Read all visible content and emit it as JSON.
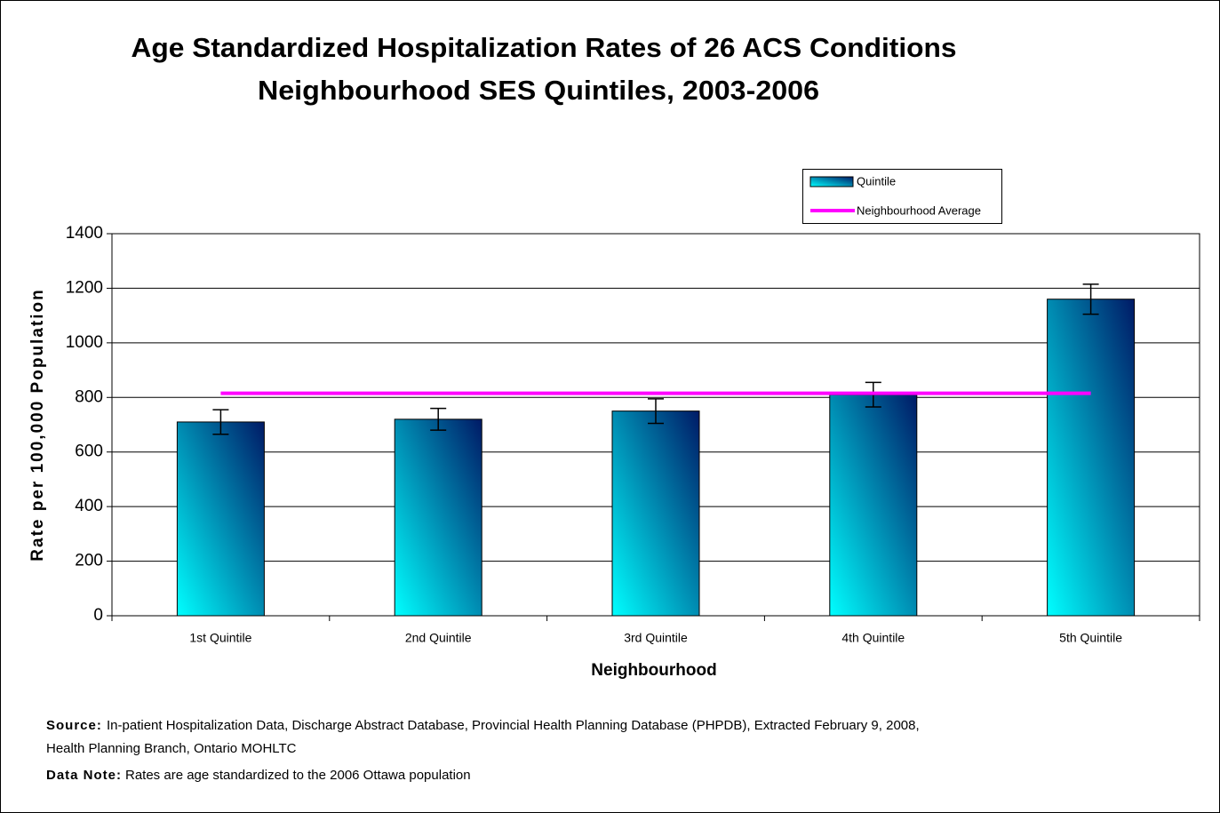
{
  "chart_data": {
    "type": "bar",
    "title": [
      "Age Standardized Hospitalization Rates of 26 ACS Conditions",
      "Neighbourhood SES Quintiles, 2003-2006"
    ],
    "x_label": "Neighbourhood",
    "y_label": "Rate per 100,000 Population",
    "categories": [
      "1st Quintile",
      "2nd Quintile",
      "3rd Quintile",
      "4th Quintile",
      "5th Quintile"
    ],
    "series": [
      {
        "name": "Quintile",
        "type": "bar",
        "colors": [
          "#00ffff",
          "#001a66"
        ],
        "values": [
          710,
          720,
          750,
          810,
          1160
        ],
        "errors": [
          45,
          40,
          45,
          45,
          55
        ]
      },
      {
        "name": "Neighbourhood Average",
        "type": "line",
        "color": "#ff00ff",
        "values": [
          815,
          815,
          815,
          815,
          815
        ]
      }
    ],
    "ylim": [
      0,
      1400
    ],
    "yticks": [
      0,
      200,
      400,
      600,
      800,
      1000,
      1200,
      1400
    ],
    "grid": true,
    "legend": "top-right",
    "notes": [
      {
        "label": "Source:",
        "text": [
          "In-patient Hospitalization Data, Discharge Abstract Database, Provincial Health Planning Database (PHPDB), Extracted February 9, 2008,",
          "Health Planning Branch, Ontario MOHLTC"
        ]
      },
      {
        "label": "Data Note:",
        "text": [
          "Rates are age standardized to the 2006 Ottawa population"
        ]
      }
    ]
  }
}
